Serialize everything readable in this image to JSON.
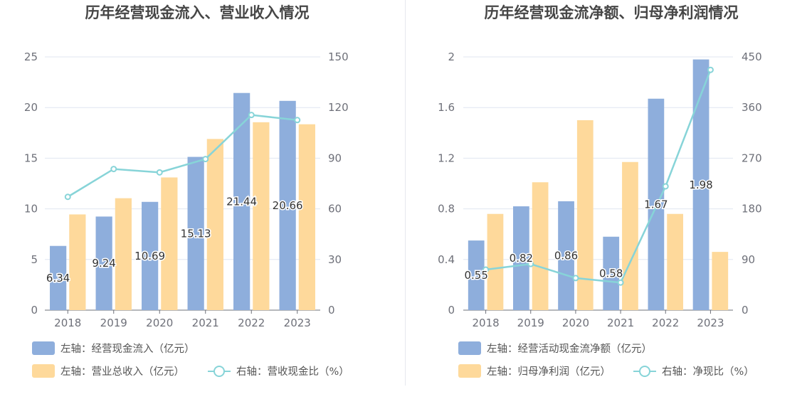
{
  "charts": [
    {
      "title": "历年经营现金流入、营业收入情况",
      "chart_data": {
        "type": "bar",
        "categories": [
          "2018",
          "2019",
          "2020",
          "2021",
          "2022",
          "2023"
        ],
        "series": [
          {
            "name": "左轴：经营现金流入（亿元）",
            "axis": "left",
            "kind": "bar",
            "color": "#8eaedc",
            "values": [
              6.34,
              9.24,
              10.69,
              15.13,
              21.44,
              20.66
            ],
            "labels_shown": true
          },
          {
            "name": "左轴：营业总收入（亿元）",
            "axis": "left",
            "kind": "bar",
            "color": "#fed99b",
            "values": [
              9.45,
              11.05,
              13.1,
              16.9,
              18.55,
              18.35
            ],
            "labels_shown": false
          },
          {
            "name": "右轴：营收现金比（%）",
            "axis": "right",
            "kind": "line",
            "color": "#87d4d8",
            "values": [
              67.1,
              83.6,
              81.6,
              89.5,
              115.6,
              112.6
            ],
            "labels_shown": false
          }
        ],
        "left_axis": {
          "min": 0,
          "max": 25,
          "ticks": [
            "0",
            "5",
            "10",
            "15",
            "20",
            "25"
          ]
        },
        "right_axis": {
          "min": 0,
          "max": 150,
          "ticks": [
            "0",
            "30",
            "60",
            "90",
            "120",
            "150"
          ]
        },
        "grid": true,
        "legend_position": "bottom-left"
      }
    },
    {
      "title": "历年经营现金流净额、归母净利润情况",
      "chart_data": {
        "type": "bar",
        "categories": [
          "2018",
          "2019",
          "2020",
          "2021",
          "2022",
          "2023"
        ],
        "series": [
          {
            "name": "左轴：经营活动现金流净额（亿元）",
            "axis": "left",
            "kind": "bar",
            "color": "#8eaedc",
            "values": [
              0.55,
              0.82,
              0.86,
              0.58,
              1.67,
              1.98
            ],
            "labels_shown": true
          },
          {
            "name": "左轴：归母净利润（亿元）",
            "axis": "left",
            "kind": "bar",
            "color": "#fed99b",
            "values": [
              0.76,
              1.01,
              1.5,
              1.17,
              0.76,
              0.46
            ],
            "labels_shown": false
          },
          {
            "name": "右轴：净现比（%）",
            "axis": "right",
            "kind": "line",
            "color": "#87d4d8",
            "values": [
              72,
              82,
              57,
              49,
              220,
              427
            ],
            "labels_shown": false
          }
        ],
        "left_axis": {
          "min": 0,
          "max": 2,
          "ticks": [
            "0",
            "0.4",
            "0.8",
            "1.2",
            "1.6",
            "2"
          ]
        },
        "right_axis": {
          "min": 0,
          "max": 450,
          "ticks": [
            "0",
            "90",
            "180",
            "270",
            "360",
            "450"
          ]
        },
        "grid": true,
        "legend_position": "bottom-left"
      }
    }
  ]
}
